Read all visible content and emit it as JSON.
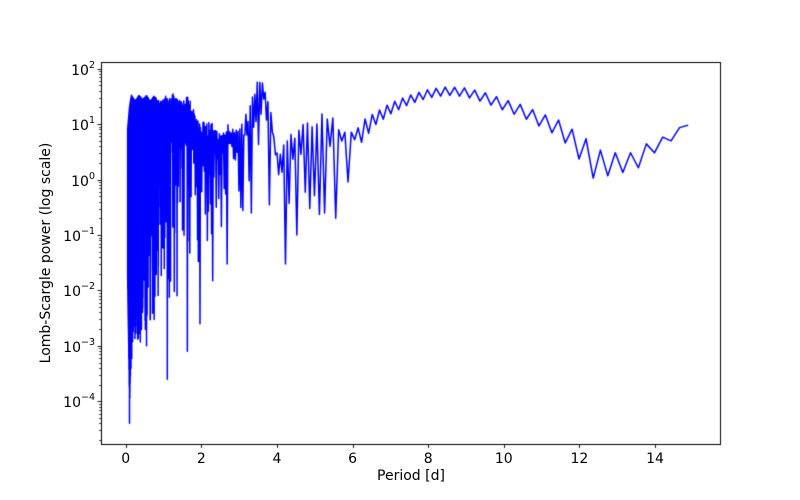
{
  "chart_data": {
    "type": "line",
    "title": "",
    "xlabel": "Period [d]",
    "ylabel": "Lomb-Scargle power (log scale)",
    "x_ticks": [
      0,
      2,
      4,
      6,
      8,
      10,
      12,
      14
    ],
    "y_scale": "log",
    "y_tick_exponents": [
      2,
      1,
      0,
      -1,
      -2,
      -3,
      -4
    ],
    "xlim": [
      -0.654,
      15.746
    ],
    "ylim_log10": [
      -4.77,
      2.12
    ],
    "grid": false,
    "legend": null,
    "line_color": "#0000ff",
    "line_width": 1.5,
    "x_range_data": [
      0.05,
      15.05
    ],
    "mean_curve_sample": [
      [
        0.1,
        20
      ],
      [
        0.5,
        15
      ],
      [
        1.0,
        12
      ],
      [
        1.5,
        14
      ],
      [
        2.0,
        6
      ],
      [
        2.5,
        4
      ],
      [
        3.0,
        6
      ],
      [
        3.55,
        60
      ],
      [
        4.0,
        2.5
      ],
      [
        4.5,
        5
      ],
      [
        5.0,
        9
      ],
      [
        5.5,
        10
      ],
      [
        6.0,
        7
      ],
      [
        6.5,
        14
      ],
      [
        7.0,
        22
      ],
      [
        7.5,
        30
      ],
      [
        8.0,
        39
      ],
      [
        8.5,
        44
      ],
      [
        9.0,
        42
      ],
      [
        9.5,
        34
      ],
      [
        10.0,
        26
      ],
      [
        10.5,
        20
      ],
      [
        11.0,
        14
      ],
      [
        11.5,
        10
      ],
      [
        12.0,
        5.5
      ],
      [
        12.5,
        2.5
      ],
      [
        13.0,
        2.2
      ],
      [
        13.5,
        2.2
      ],
      [
        14.0,
        4.8
      ],
      [
        14.5,
        6.5
      ],
      [
        15.0,
        14
      ]
    ],
    "upper_envelope": [
      [
        0.05,
        8
      ],
      [
        0.1,
        20
      ],
      [
        0.15,
        33
      ],
      [
        0.25,
        26
      ],
      [
        0.35,
        33
      ],
      [
        0.45,
        28
      ],
      [
        0.55,
        33
      ],
      [
        0.65,
        26
      ],
      [
        0.75,
        32
      ],
      [
        0.85,
        27
      ],
      [
        0.95,
        25
      ],
      [
        1.05,
        33
      ],
      [
        1.15,
        28
      ],
      [
        1.25,
        35
      ],
      [
        1.35,
        28
      ],
      [
        1.45,
        26
      ],
      [
        1.55,
        30
      ],
      [
        1.65,
        32
      ],
      [
        1.75,
        22
      ],
      [
        1.85,
        14
      ],
      [
        1.95,
        11
      ],
      [
        2.05,
        12
      ],
      [
        2.15,
        10
      ],
      [
        2.25,
        12
      ],
      [
        2.35,
        8
      ],
      [
        2.45,
        7
      ],
      [
        2.55,
        9
      ],
      [
        2.65,
        11
      ],
      [
        2.75,
        12
      ],
      [
        2.85,
        10
      ],
      [
        2.95,
        9
      ],
      [
        3.05,
        10
      ],
      [
        3.15,
        13
      ],
      [
        3.25,
        22
      ],
      [
        3.35,
        36
      ],
      [
        3.45,
        55
      ],
      [
        3.55,
        66
      ],
      [
        3.65,
        52
      ],
      [
        3.75,
        34
      ],
      [
        3.85,
        18
      ],
      [
        3.95,
        7
      ],
      [
        4.02,
        2.8
      ],
      [
        4.1,
        3.5
      ],
      [
        4.2,
        5
      ],
      [
        4.35,
        6.5
      ],
      [
        4.5,
        8
      ],
      [
        4.65,
        9.5
      ],
      [
        4.8,
        11
      ],
      [
        4.95,
        12.5
      ],
      [
        5.1,
        14
      ],
      [
        5.25,
        16
      ],
      [
        5.4,
        15
      ],
      [
        5.55,
        12
      ],
      [
        5.7,
        9.5
      ],
      [
        5.85,
        8.5
      ],
      [
        6.0,
        10
      ],
      [
        6.15,
        11
      ],
      [
        6.3,
        12
      ],
      [
        6.6,
        16
      ],
      [
        7.0,
        24
      ],
      [
        7.5,
        33
      ],
      [
        8.0,
        42
      ],
      [
        8.5,
        47
      ],
      [
        9.0,
        45
      ],
      [
        9.5,
        37
      ],
      [
        10.0,
        28
      ],
      [
        10.5,
        22
      ],
      [
        11.0,
        15.5
      ],
      [
        11.5,
        11.5
      ],
      [
        12.0,
        6.5
      ],
      [
        12.3,
        4.8
      ],
      [
        12.6,
        3.2
      ],
      [
        12.9,
        3.0
      ],
      [
        13.2,
        3.2
      ],
      [
        13.5,
        2.9
      ],
      [
        13.8,
        4.6
      ],
      [
        14.1,
        5.3
      ],
      [
        14.4,
        7
      ],
      [
        14.7,
        9
      ],
      [
        15.05,
        14.5
      ]
    ],
    "typical_dip_depth_dex": [
      [
        0.05,
        2.0
      ],
      [
        0.1,
        4.0
      ],
      [
        0.2,
        3.2
      ],
      [
        0.4,
        3.3
      ],
      [
        0.6,
        3.1
      ],
      [
        0.8,
        2.9
      ],
      [
        1.0,
        3.0
      ],
      [
        1.2,
        2.7
      ],
      [
        1.4,
        2.5
      ],
      [
        1.6,
        2.9
      ],
      [
        1.8,
        2.5
      ],
      [
        2.0,
        2.3
      ],
      [
        2.2,
        1.9
      ],
      [
        2.4,
        1.7
      ],
      [
        2.6,
        1.8
      ],
      [
        2.8,
        1.6
      ],
      [
        3.0,
        1.4
      ],
      [
        3.2,
        1.2
      ],
      [
        3.4,
        1.0
      ],
      [
        3.55,
        0.85
      ],
      [
        3.7,
        1.0
      ],
      [
        3.9,
        1.1
      ],
      [
        4.05,
        1.2
      ],
      [
        4.3,
        1.6
      ],
      [
        4.5,
        1.5
      ],
      [
        4.7,
        1.4
      ],
      [
        4.9,
        1.5
      ],
      [
        5.1,
        1.5
      ],
      [
        5.3,
        1.6
      ],
      [
        5.5,
        1.4
      ],
      [
        5.7,
        1.1
      ],
      [
        5.9,
        0.95
      ],
      [
        6.1,
        0.85
      ],
      [
        6.3,
        0.35
      ],
      [
        6.6,
        0.22
      ],
      [
        7.0,
        0.2
      ],
      [
        7.5,
        0.16
      ],
      [
        8.0,
        0.15
      ],
      [
        8.5,
        0.15
      ],
      [
        9.0,
        0.16
      ],
      [
        9.5,
        0.18
      ],
      [
        10.0,
        0.2
      ],
      [
        10.5,
        0.22
      ],
      [
        11.0,
        0.25
      ],
      [
        11.5,
        0.3
      ],
      [
        12.0,
        0.45
      ],
      [
        12.3,
        0.65
      ],
      [
        12.6,
        0.5
      ],
      [
        12.9,
        0.35
      ],
      [
        13.2,
        0.38
      ],
      [
        13.5,
        0.3
      ],
      [
        13.8,
        0.25
      ],
      [
        14.1,
        0.2
      ],
      [
        14.4,
        0.16
      ],
      [
        14.7,
        0.12
      ],
      [
        15.05,
        0.04
      ]
    ],
    "deep_dips": [
      [
        0.1,
        4e-05
      ],
      [
        0.35,
        0.002
      ],
      [
        0.55,
        0.001
      ],
      [
        0.75,
        0.003
      ],
      [
        1.1,
        0.00025
      ],
      [
        1.35,
        0.008
      ],
      [
        1.62,
        0.0008
      ],
      [
        1.95,
        0.0025
      ],
      [
        2.3,
        0.015
      ],
      [
        2.65,
        0.03
      ],
      [
        3.3,
        0.25
      ],
      [
        3.75,
        0.35
      ],
      [
        4.2,
        0.03
      ],
      [
        4.5,
        0.1
      ],
      [
        4.85,
        0.3
      ],
      [
        5.2,
        0.25
      ],
      [
        5.55,
        0.2
      ],
      [
        5.8,
        0.9
      ]
    ],
    "oscillation": {
      "note": "local oscillation wavelength in period units is approx p^2 / cycles_scale(p)",
      "cycles_scale_points": [
        [
          0.05,
          160
        ],
        [
          6.0,
          200
        ],
        [
          8.0,
          280
        ],
        [
          10.0,
          320
        ],
        [
          13.0,
          420
        ],
        [
          15.05,
          480
        ]
      ],
      "noisy_region_max_period": 6.3
    },
    "features": {
      "main_peak": {
        "period": 3.55,
        "power": 66
      },
      "broad_maximum": {
        "period": 8.6,
        "power": 47
      },
      "tail_minimum": {
        "period": 12.6,
        "power": 1.0
      },
      "deepest_null": {
        "period": 0.1,
        "power": 4e-05
      },
      "end_point": {
        "period": 15.05,
        "power": 14.5
      }
    }
  },
  "colors": {
    "background": "#ffffff",
    "axes": "#000000",
    "line": "#0000ff"
  }
}
